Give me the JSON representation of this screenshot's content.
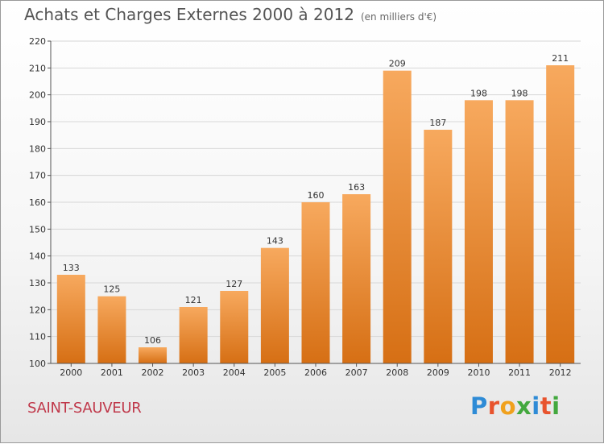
{
  "header": {
    "title": "Achats et Charges Externes 2000 à 2012",
    "subtitle": "(en milliers d'€)"
  },
  "location": "SAINT-SAUVEUR",
  "logo": {
    "text": "Proxiti",
    "letter_colors": [
      "#2e8bd6",
      "#e8532d",
      "#f0a11d",
      "#43a83e",
      "#2e8bd6",
      "#e8532d",
      "#43a83e"
    ]
  },
  "colors": {
    "bar_light": "#f7a95e",
    "bar_dark": "#d66f14",
    "grid": "#d7d7d7",
    "axis": "#555555",
    "text": "#333333"
  },
  "chart_data": {
    "type": "bar",
    "categories": [
      "2000",
      "2001",
      "2002",
      "2003",
      "2004",
      "2005",
      "2006",
      "2007",
      "2008",
      "2009",
      "2010",
      "2011",
      "2012"
    ],
    "values": [
      133,
      125,
      106,
      121,
      127,
      143,
      160,
      163,
      209,
      187,
      198,
      198,
      211
    ],
    "value_labels": [
      "133",
      "125",
      "106",
      "121",
      "127",
      "143",
      "160",
      "163",
      "209",
      "187",
      "198",
      "198",
      "211"
    ],
    "yticks": [
      "100",
      "110",
      "120",
      "130",
      "140",
      "150",
      "160",
      "170",
      "180",
      "190",
      "200",
      "210",
      "220"
    ],
    "ylim": [
      100,
      220
    ],
    "grid": true,
    "title": "Achats et Charges Externes 2000 à 2012",
    "subtitle": "(en milliers d'€)",
    "xlabel": "",
    "ylabel": ""
  }
}
